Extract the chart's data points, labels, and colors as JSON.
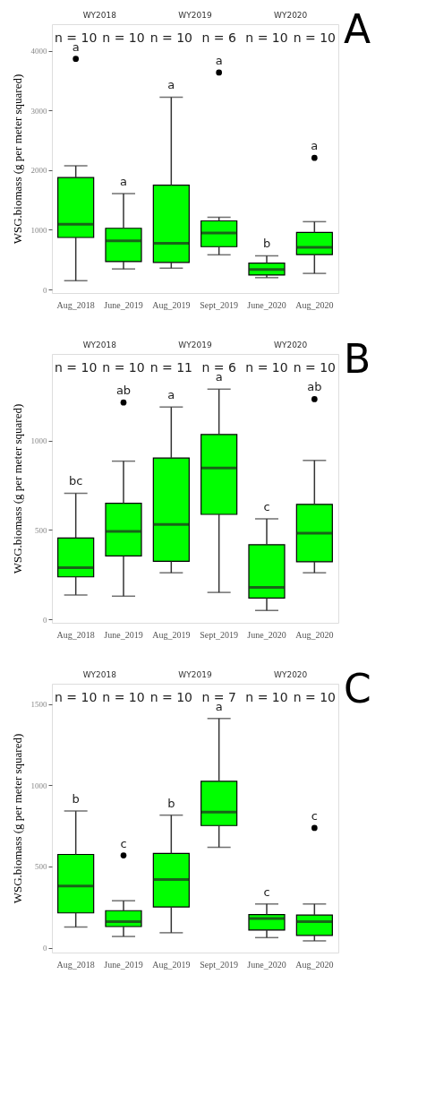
{
  "chart_data": [
    {
      "type": "box",
      "title": "A",
      "ylabel": "WSG.biomass (g per meter squared)",
      "color": "#00ff00",
      "categories": [
        "Aug_2018",
        "June_2019",
        "Aug_2019",
        "Sept_2019",
        "June_2020",
        "Aug_2020"
      ],
      "ylim": [
        -60,
        4450
      ],
      "yticks": [
        0,
        1000,
        2000,
        3000,
        4000
      ],
      "grid": false,
      "boxes": [
        {
          "low": 145,
          "q1": 872,
          "median": 1093,
          "q3": 1877,
          "high": 2075,
          "outliers": [
            3868
          ]
        },
        {
          "low": 344,
          "q1": 467,
          "median": 815,
          "q3": 1026,
          "high": 1608
        },
        {
          "low": 357,
          "q1": 454,
          "median": 775,
          "q3": 1749,
          "high": 3225
        },
        {
          "low": 581,
          "q1": 718,
          "median": 947,
          "q3": 1150,
          "high": 1211,
          "outliers": [
            3639
          ]
        },
        {
          "low": 198,
          "q1": 242,
          "median": 335,
          "q3": 441,
          "high": 564
        },
        {
          "low": 269,
          "q1": 586,
          "median": 705,
          "q3": 956,
          "high": 1137,
          "outliers": [
            2207
          ]
        }
      ],
      "annotations": [
        "WY2018",
        "WY2019",
        "WY2020",
        "n = 10",
        "n = 10",
        "n = 10",
        "n = 6",
        "n = 10",
        "n = 10",
        "a",
        "a",
        "a",
        "a",
        "b",
        "a"
      ]
    },
    {
      "type": "box",
      "title": "B",
      "ylabel": "WSG.biomass (g per meter squared)",
      "color": "#00ff00",
      "categories": [
        "Aug_2018",
        "June_2019",
        "Aug_2019",
        "Sept_2019",
        "June_2020",
        "Aug_2020"
      ],
      "ylim": [
        -20,
        1485
      ],
      "yticks": [
        0,
        500,
        1000
      ],
      "grid": false,
      "boxes": [
        {
          "low": 136,
          "q1": 237,
          "median": 288,
          "q3": 455,
          "high": 705
        },
        {
          "low": 129,
          "q1": 354,
          "median": 492,
          "q3": 649,
          "high": 885,
          "outliers": [
            1213
          ]
        },
        {
          "low": 260,
          "q1": 324,
          "median": 531,
          "q3": 902,
          "high": 1188
        },
        {
          "low": 150,
          "q1": 587,
          "median": 847,
          "q3": 1034,
          "high": 1288
        },
        {
          "low": 49,
          "q1": 119,
          "median": 178,
          "q3": 417,
          "high": 562
        },
        {
          "low": 260,
          "q1": 322,
          "median": 482,
          "q3": 643,
          "high": 889,
          "outliers": [
            1232
          ]
        }
      ],
      "annotations": [
        "WY2018",
        "WY2019",
        "WY2020",
        "n = 10",
        "n = 10",
        "n = 11",
        "n = 6",
        "n = 10",
        "n = 10",
        "bc",
        "ab",
        "a",
        "a",
        "c",
        "ab"
      ]
    },
    {
      "type": "box",
      "title": "C",
      "ylabel": "WSG.biomass (g per meter squared)",
      "color": "#00ff00",
      "categories": [
        "Aug_2018",
        "June_2019",
        "Aug_2019",
        "Sept_2019",
        "June_2020",
        "Aug_2020"
      ],
      "ylim": [
        -30,
        1625
      ],
      "yticks": [
        0,
        500,
        1000,
        1500
      ],
      "grid": false,
      "boxes": [
        {
          "low": 127,
          "q1": 214,
          "median": 379,
          "q3": 574,
          "high": 841
        },
        {
          "low": 69,
          "q1": 130,
          "median": 160,
          "q3": 228,
          "high": 289,
          "outliers": [
            568
          ]
        },
        {
          "low": 92,
          "q1": 251,
          "median": 420,
          "q3": 580,
          "high": 816
        },
        {
          "low": 618,
          "q1": 752,
          "median": 835,
          "q3": 1024,
          "high": 1411
        },
        {
          "low": 62,
          "q1": 109,
          "median": 180,
          "q3": 204,
          "high": 269
        },
        {
          "low": 42,
          "q1": 76,
          "median": 160,
          "q3": 201,
          "high": 269,
          "outliers": [
            737
          ]
        }
      ],
      "annotations": [
        "WY2018",
        "WY2019",
        "WY2020",
        "n = 10",
        "n = 10",
        "n = 10",
        "n = 7",
        "n = 10",
        "n = 10",
        "b",
        "c",
        "b",
        "a",
        "c",
        "c"
      ]
    }
  ]
}
